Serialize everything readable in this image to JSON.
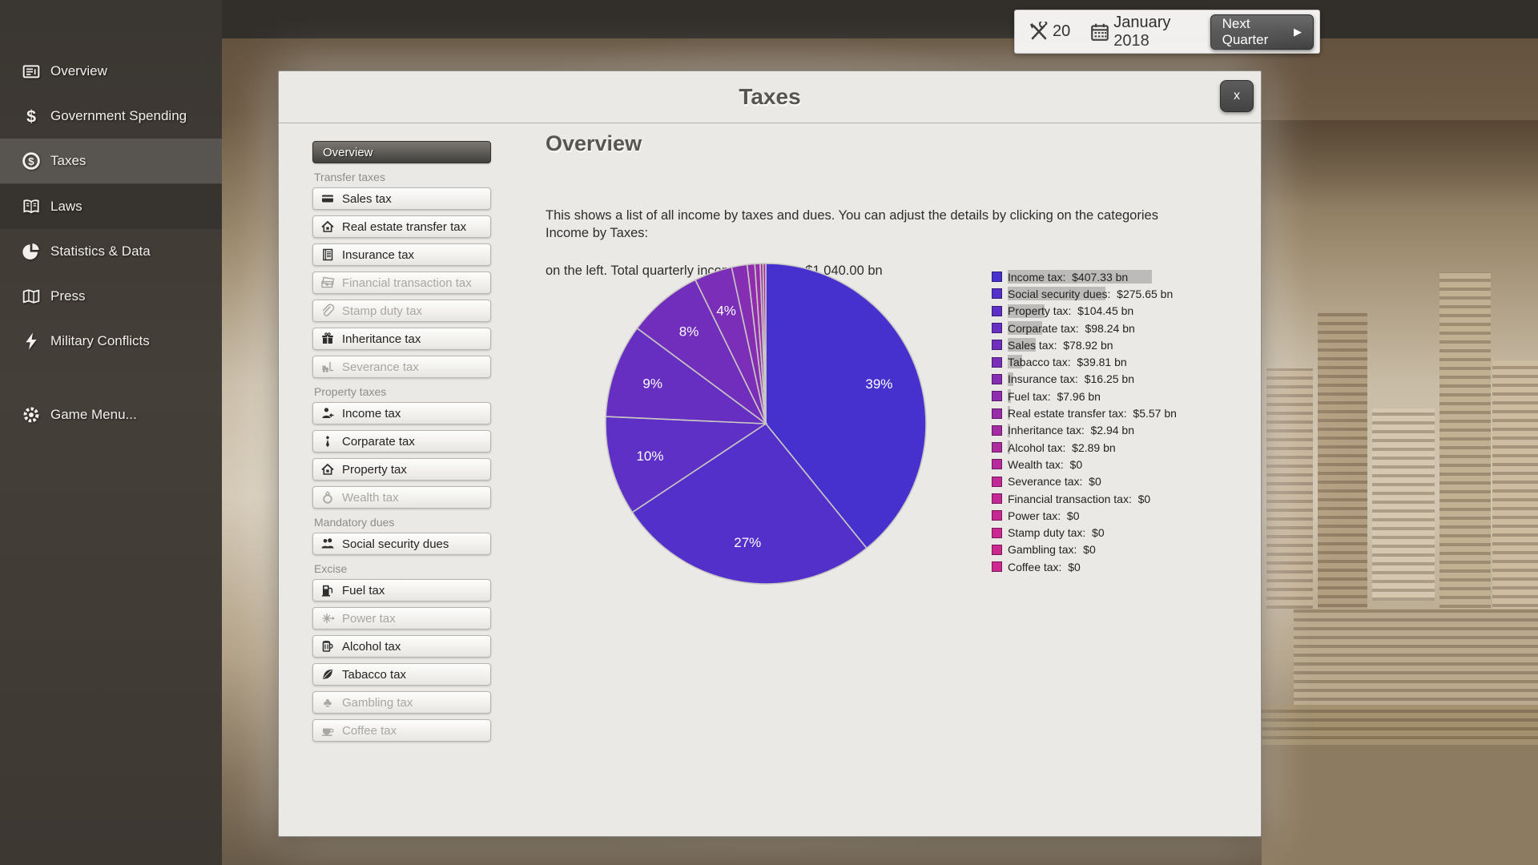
{
  "top_bar": {
    "money": "20",
    "date": "January 2018",
    "next_quarter_label": "Next Quarter",
    "next_quarter_arrow": "▶"
  },
  "sidebar": {
    "items": [
      {
        "label": "Overview",
        "icon": "newspaper-icon",
        "state": "normal"
      },
      {
        "label": "Government Spending",
        "icon": "dollar-icon",
        "state": "normal"
      },
      {
        "label": "Taxes",
        "icon": "coin-dollar-icon",
        "state": "selected"
      },
      {
        "label": "Laws",
        "icon": "book-icon",
        "state": "normal"
      },
      {
        "label": "Statistics & Data",
        "icon": "piechart-icon",
        "state": "normal"
      },
      {
        "label": "Press",
        "icon": "map-icon",
        "state": "normal"
      },
      {
        "label": "Military Conflicts",
        "icon": "bolt-icon",
        "state": "normal"
      },
      {
        "label": "Game Menu...",
        "icon": "gear-icon",
        "state": "normal"
      }
    ]
  },
  "modal": {
    "title": "Taxes",
    "close_label": "x",
    "nav": {
      "overview_label": "Overview",
      "sections": [
        {
          "label": "Transfer taxes",
          "items": [
            {
              "label": "Sales tax",
              "icon": "credit-card-icon",
              "enabled": true
            },
            {
              "label": "Real estate transfer tax",
              "icon": "house-icon",
              "enabled": true
            },
            {
              "label": "Insurance tax",
              "icon": "ledger-icon",
              "enabled": true
            },
            {
              "label": "Financial transaction tax",
              "icon": "banknotes-icon",
              "enabled": false
            },
            {
              "label": "Stamp duty tax",
              "icon": "paperclip-icon",
              "enabled": false
            },
            {
              "label": "Inheritance tax",
              "icon": "gift-icon",
              "enabled": true
            },
            {
              "label": "Severance tax",
              "icon": "forklift-icon",
              "enabled": false
            }
          ]
        },
        {
          "label": "Property taxes",
          "items": [
            {
              "label": "Income tax",
              "icon": "person-icon",
              "enabled": true
            },
            {
              "label": "Corparate tax",
              "icon": "tie-icon",
              "enabled": true
            },
            {
              "label": "Property tax",
              "icon": "house-icon",
              "enabled": true
            },
            {
              "label": "Wealth tax",
              "icon": "ring-icon",
              "enabled": false
            }
          ]
        },
        {
          "label": "Mandatory dues",
          "items": [
            {
              "label": "Social security dues",
              "icon": "people-icon",
              "enabled": true
            }
          ]
        },
        {
          "label": "Excise",
          "items": [
            {
              "label": "Fuel tax",
              "icon": "fuel-pump-icon",
              "enabled": true
            },
            {
              "label": "Power tax",
              "icon": "power-icon",
              "enabled": false
            },
            {
              "label": "Alcohol tax",
              "icon": "beer-icon",
              "enabled": true
            },
            {
              "label": "Tabacco tax",
              "icon": "leaf-icon",
              "enabled": true
            },
            {
              "label": "Gambling tax",
              "icon": "club-icon",
              "enabled": false
            },
            {
              "label": "Coffee tax",
              "icon": "coffee-icon",
              "enabled": false
            }
          ]
        }
      ]
    },
    "content": {
      "heading": "Overview",
      "description_line1": "This shows a list of all income by taxes and dues. You can adjust the details by clicking on the categories",
      "description_line2": "on the left. Total quarterly income currently:  $1,040.00 bn",
      "chart_label": "Income by Taxes:"
    }
  },
  "chart_data": {
    "type": "pie",
    "title": "Income by Taxes",
    "total_label": "$1,040.00 bn",
    "unit": "$ bn per quarter",
    "direction": "clockwise",
    "start_angle": "12-oclock",
    "legend_position": "right",
    "series": [
      {
        "label": "Income tax",
        "value": 407.33,
        "value_label": "$407.33 bn",
        "percent_label": "39%",
        "color": "#4731CE"
      },
      {
        "label": "Social security dues",
        "value": 275.65,
        "value_label": "$275.65 bn",
        "percent_label": "27%",
        "color": "#5430CA"
      },
      {
        "label": "Property tax",
        "value": 104.45,
        "value_label": "$104.45 bn",
        "percent_label": "10%",
        "color": "#5E30C6"
      },
      {
        "label": "Corparate tax",
        "value": 98.24,
        "value_label": "$98.24 bn",
        "percent_label": "9%",
        "color": "#672FC1"
      },
      {
        "label": "Sales tax",
        "value": 78.92,
        "value_label": "$78.92 bn",
        "percent_label": "8%",
        "color": "#712EBC"
      },
      {
        "label": "Tabacco tax",
        "value": 39.81,
        "value_label": "$39.81 bn",
        "percent_label": "4%",
        "color": "#7B2EB7"
      },
      {
        "label": "Insurance tax",
        "value": 16.25,
        "value_label": "$16.25 bn",
        "percent_label": null,
        "color": "#852DB3"
      },
      {
        "label": "Fuel tax",
        "value": 7.96,
        "value_label": "$7.96 bn",
        "percent_label": null,
        "color": "#8F2DAE"
      },
      {
        "label": "Real estate transfer tax",
        "value": 5.57,
        "value_label": "$5.57 bn",
        "percent_label": null,
        "color": "#992CA9"
      },
      {
        "label": "Inheritance tax",
        "value": 2.94,
        "value_label": "$2.94 bn",
        "percent_label": null,
        "color": "#A32BA4"
      },
      {
        "label": "Alcohol tax",
        "value": 2.89,
        "value_label": "$2.89 bn",
        "percent_label": null,
        "color": "#AC2B9F"
      },
      {
        "label": "Wealth tax",
        "value": 0,
        "value_label": "$0",
        "percent_label": null,
        "color": "#B62A9B"
      },
      {
        "label": "Severance tax",
        "value": 0,
        "value_label": "$0",
        "percent_label": null,
        "color": "#C02996"
      },
      {
        "label": "Financial transaction tax",
        "value": 0,
        "value_label": "$0",
        "percent_label": null,
        "color": "#C32994"
      },
      {
        "label": "Power tax",
        "value": 0,
        "value_label": "$0",
        "percent_label": null,
        "color": "#C62992"
      },
      {
        "label": "Stamp duty tax",
        "value": 0,
        "value_label": "$0",
        "percent_label": null,
        "color": "#C92991"
      },
      {
        "label": "Gambling tax",
        "value": 0,
        "value_label": "$0",
        "percent_label": null,
        "color": "#CB2890"
      },
      {
        "label": "Coffee tax",
        "value": 0,
        "value_label": "$0",
        "percent_label": null,
        "color": "#CD288F"
      }
    ]
  }
}
